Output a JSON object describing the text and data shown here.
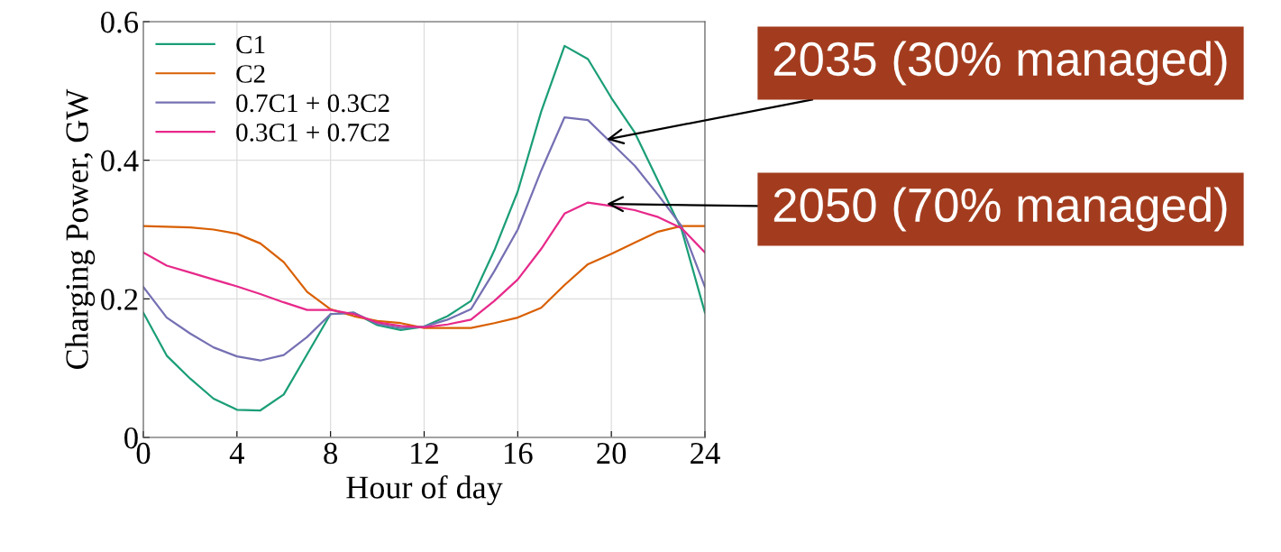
{
  "chart_data": {
    "type": "line",
    "xlabel": "Hour of day",
    "ylabel": "Charging Power, GW",
    "x": [
      0,
      1,
      2,
      3,
      4,
      5,
      6,
      7,
      8,
      9,
      10,
      11,
      12,
      13,
      14,
      15,
      16,
      17,
      18,
      19,
      20,
      21,
      22,
      23,
      24
    ],
    "series": [
      {
        "name": "C1",
        "color": "#1b9e77",
        "values": [
          0.18,
          0.118,
          0.085,
          0.056,
          0.04,
          0.039,
          0.062,
          0.12,
          0.178,
          0.18,
          0.162,
          0.155,
          0.16,
          0.175,
          0.197,
          0.27,
          0.355,
          0.47,
          0.565,
          0.546,
          0.49,
          0.44,
          0.37,
          0.3,
          0.18
        ]
      },
      {
        "name": "C2",
        "color": "#d95f02",
        "values": [
          0.305,
          0.304,
          0.303,
          0.3,
          0.294,
          0.28,
          0.253,
          0.21,
          0.185,
          0.175,
          0.168,
          0.165,
          0.158,
          0.158,
          0.158,
          0.165,
          0.173,
          0.187,
          0.22,
          0.25,
          0.265,
          0.281,
          0.297,
          0.305,
          0.305
        ]
      },
      {
        "name": "0.7C1 + 0.3C2",
        "color": "#7570b3",
        "values": [
          0.217,
          0.173,
          0.15,
          0.13,
          0.117,
          0.111,
          0.119,
          0.145,
          0.178,
          0.18,
          0.164,
          0.158,
          0.16,
          0.17,
          0.185,
          0.24,
          0.3,
          0.385,
          0.462,
          0.458,
          0.425,
          0.392,
          0.35,
          0.305,
          0.217
        ]
      },
      {
        "name": "0.3C1 + 0.7C2",
        "color": "#e7298a",
        "values": [
          0.267,
          0.248,
          0.238,
          0.228,
          0.218,
          0.207,
          0.195,
          0.184,
          0.184,
          0.178,
          0.166,
          0.161,
          0.159,
          0.163,
          0.17,
          0.197,
          0.228,
          0.272,
          0.323,
          0.339,
          0.334,
          0.328,
          0.318,
          0.302,
          0.267
        ]
      }
    ],
    "xlim": [
      0,
      24
    ],
    "xticks": [
      0,
      4,
      8,
      12,
      16,
      20,
      24
    ],
    "ylim": [
      0,
      0.6
    ],
    "yticks": [
      0,
      0.2,
      0.4,
      0.6
    ],
    "grid": true,
    "legend": "top left",
    "marker": "none",
    "line_style": "solid",
    "annotations": [
      {
        "text": "2035 (30% managed)",
        "x": 19.8,
        "y": 0.43
      },
      {
        "text": "2050 (70% managed)",
        "x": 19.8,
        "y": 0.337
      }
    ]
  }
}
